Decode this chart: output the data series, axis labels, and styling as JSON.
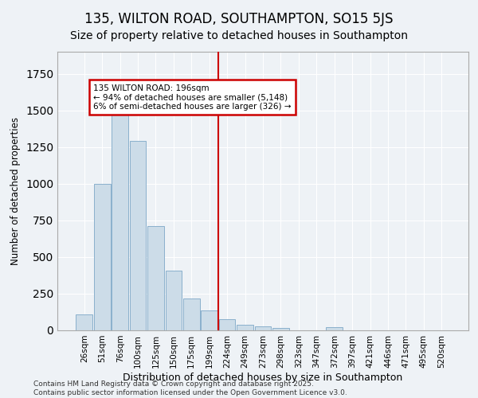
{
  "title": "135, WILTON ROAD, SOUTHAMPTON, SO15 5JS",
  "subtitle": "Size of property relative to detached houses in Southampton",
  "xlabel": "Distribution of detached houses by size in Southampton",
  "ylabel": "Number of detached properties",
  "categories": [
    "26sqm",
    "51sqm",
    "76sqm",
    "100sqm",
    "125sqm",
    "150sqm",
    "175sqm",
    "199sqm",
    "224sqm",
    "249sqm",
    "273sqm",
    "298sqm",
    "323sqm",
    "347sqm",
    "372sqm",
    "397sqm",
    "421sqm",
    "446sqm",
    "471sqm",
    "495sqm",
    "520sqm"
  ],
  "values": [
    110,
    1000,
    1510,
    1290,
    710,
    405,
    215,
    135,
    75,
    40,
    28,
    15,
    0,
    0,
    20,
    0,
    0,
    0,
    0,
    0,
    0
  ],
  "bar_color": "#ccdce8",
  "bar_edgecolor": "#8ab0cc",
  "vline_x": 7.5,
  "vline_color": "#cc0000",
  "annotation_text": "135 WILTON ROAD: 196sqm\n← 94% of detached houses are smaller (5,148)\n6% of semi-detached houses are larger (326) →",
  "annotation_box_facecolor": "#ffffff",
  "annotation_box_edgecolor": "#cc0000",
  "footer_text": "Contains HM Land Registry data © Crown copyright and database right 2025.\nContains public sector information licensed under the Open Government Licence v3.0.",
  "background_color": "#eef2f6",
  "plot_background_color": "#eef2f6",
  "ylim": [
    0,
    1900
  ],
  "title_fontsize": 12,
  "subtitle_fontsize": 10,
  "ylabel_fontsize": 8.5,
  "xlabel_fontsize": 9,
  "tick_fontsize": 7.5,
  "footer_fontsize": 6.5,
  "grid_color": "#ffffff"
}
